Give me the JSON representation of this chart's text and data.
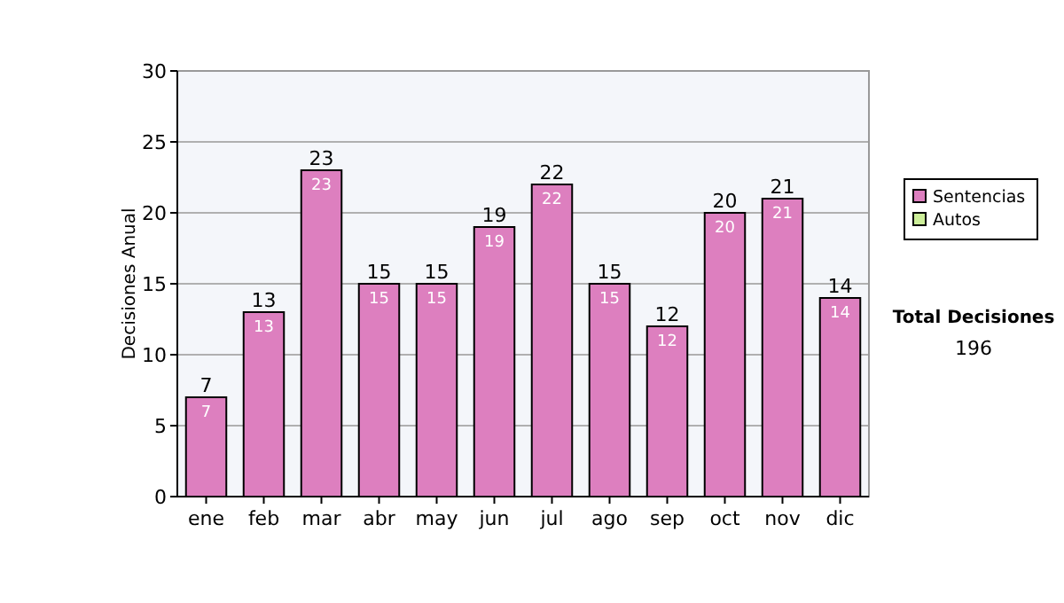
{
  "chart_data": {
    "type": "bar",
    "stacked": true,
    "ylabel": "Decisiones Anual",
    "categories": [
      "ene",
      "feb",
      "mar",
      "abr",
      "may",
      "jun",
      "jul",
      "ago",
      "sep",
      "oct",
      "nov",
      "dic"
    ],
    "series": [
      {
        "name": "Sentencias",
        "color": "#dd7fbf",
        "values": [
          7,
          13,
          23,
          15,
          15,
          19,
          22,
          15,
          12,
          20,
          21,
          14
        ],
        "value_labels": [
          "7",
          "13",
          "23",
          "15",
          "15",
          "19",
          "22",
          "15",
          "12",
          "20",
          "21",
          "14"
        ]
      },
      {
        "name": "Autos",
        "color": "#ccee99",
        "values": [
          0,
          0,
          0,
          0,
          0,
          0,
          0,
          0,
          0,
          0,
          0,
          0
        ]
      }
    ],
    "totals": [
      "7",
      "13",
      "23",
      "15",
      "15",
      "19",
      "22",
      "15",
      "12",
      "20",
      "21",
      "14"
    ],
    "ylim": [
      0,
      30
    ],
    "yticks": [
      0,
      5,
      10,
      15,
      20,
      25,
      30
    ],
    "grid": "y",
    "legend": "right",
    "annotations": [
      "Total Decisiones",
      "196"
    ]
  }
}
